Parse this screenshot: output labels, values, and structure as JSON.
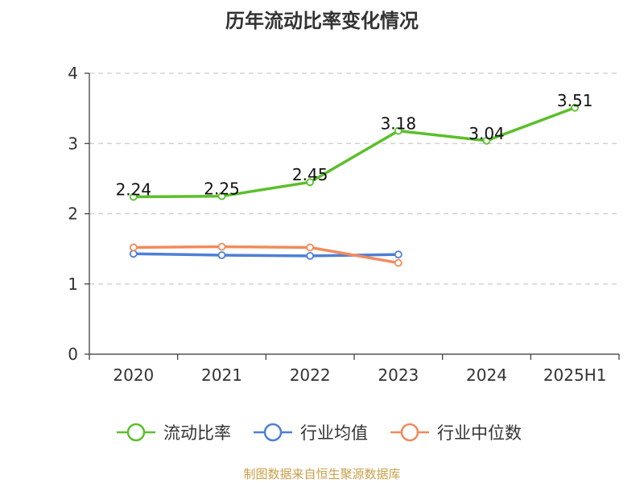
{
  "title": "历年流动比率变化情况",
  "source": "制图数据来自恒生聚源数据库",
  "chart_data": {
    "type": "line",
    "title": "历年流动比率变化情况",
    "xlabel": "",
    "ylabel": "",
    "categories": [
      "2020",
      "2021",
      "2022",
      "2023",
      "2024",
      "2025H1"
    ],
    "ylim": [
      0,
      4
    ],
    "yticks": [
      0,
      1,
      2,
      3,
      4
    ],
    "grid": "horizontal dashed",
    "legend_position": "bottom",
    "series": [
      {
        "name": "流动比率",
        "color": "#5bbf2a",
        "values": [
          2.24,
          2.25,
          2.45,
          3.18,
          3.04,
          3.51
        ],
        "labels": [
          "2.24",
          "2.25",
          "2.45",
          "3.18",
          "3.04",
          "3.51"
        ]
      },
      {
        "name": "行业均值",
        "color": "#4f7fd6",
        "values": [
          1.43,
          1.41,
          1.4,
          1.42,
          null,
          null
        ]
      },
      {
        "name": "行业中位数",
        "color": "#f28b5b",
        "values": [
          1.52,
          1.53,
          1.52,
          1.3,
          null,
          null
        ]
      }
    ]
  }
}
